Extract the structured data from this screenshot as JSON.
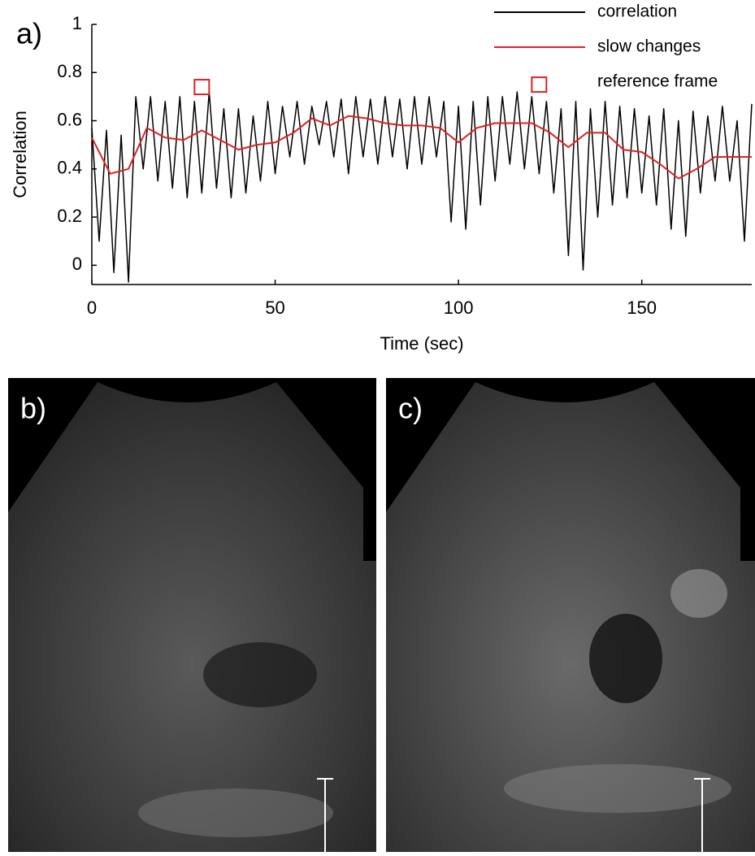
{
  "chart_data": {
    "type": "line",
    "panel_label": "a)",
    "x_label": "Time (sec)",
    "y_label": "Correlation",
    "xlim": [
      0,
      180
    ],
    "ylim": [
      -0.08,
      1
    ],
    "xticks": [
      0,
      50,
      100,
      150
    ],
    "yticks": [
      0,
      0.2,
      0.4,
      0.6,
      0.8,
      1
    ],
    "series": [
      {
        "name": "correlation",
        "color": "#000000",
        "mode": "lines",
        "x": [
          0,
          2,
          4,
          6,
          8,
          10,
          12,
          14,
          16,
          18,
          20,
          22,
          24,
          26,
          28,
          30,
          32,
          34,
          36,
          38,
          40,
          42,
          44,
          46,
          48,
          50,
          52,
          54,
          56,
          58,
          60,
          62,
          64,
          66,
          68,
          70,
          72,
          74,
          76,
          78,
          80,
          82,
          84,
          86,
          88,
          90,
          92,
          94,
          96,
          98,
          100,
          102,
          104,
          106,
          108,
          110,
          112,
          114,
          116,
          118,
          120,
          122,
          124,
          126,
          128,
          130,
          132,
          134,
          136,
          138,
          140,
          142,
          144,
          146,
          148,
          150,
          152,
          154,
          156,
          158,
          160,
          162,
          164,
          166,
          168,
          170,
          172,
          174,
          176,
          178,
          180
        ],
        "values": [
          0.57,
          0.1,
          0.56,
          -0.03,
          0.54,
          -0.07,
          0.7,
          0.4,
          0.7,
          0.35,
          0.68,
          0.32,
          0.7,
          0.28,
          0.68,
          0.3,
          0.72,
          0.32,
          0.65,
          0.28,
          0.65,
          0.3,
          0.62,
          0.35,
          0.68,
          0.38,
          0.66,
          0.45,
          0.68,
          0.42,
          0.66,
          0.5,
          0.68,
          0.45,
          0.69,
          0.38,
          0.7,
          0.45,
          0.69,
          0.42,
          0.7,
          0.45,
          0.69,
          0.4,
          0.7,
          0.42,
          0.7,
          0.45,
          0.68,
          0.18,
          0.66,
          0.15,
          0.68,
          0.25,
          0.7,
          0.35,
          0.7,
          0.42,
          0.72,
          0.4,
          0.7,
          0.38,
          0.68,
          0.3,
          0.65,
          0.04,
          0.68,
          -0.02,
          0.65,
          0.2,
          0.68,
          0.25,
          0.66,
          0.28,
          0.65,
          0.3,
          0.62,
          0.25,
          0.65,
          0.15,
          0.6,
          0.12,
          0.64,
          0.3,
          0.62,
          0.35,
          0.66,
          0.35,
          0.6,
          0.1,
          0.67
        ]
      },
      {
        "name": "slow changes",
        "color": "#dd2222",
        "mode": "lines",
        "x": [
          0,
          5,
          10,
          15,
          20,
          25,
          30,
          35,
          40,
          45,
          50,
          55,
          60,
          65,
          70,
          75,
          80,
          85,
          90,
          95,
          100,
          105,
          110,
          115,
          120,
          125,
          130,
          135,
          140,
          145,
          150,
          155,
          160,
          165,
          170,
          175,
          180
        ],
        "values": [
          0.53,
          0.38,
          0.4,
          0.57,
          0.53,
          0.52,
          0.56,
          0.52,
          0.48,
          0.5,
          0.51,
          0.55,
          0.61,
          0.58,
          0.62,
          0.61,
          0.59,
          0.58,
          0.58,
          0.57,
          0.51,
          0.57,
          0.59,
          0.59,
          0.59,
          0.55,
          0.49,
          0.55,
          0.55,
          0.48,
          0.47,
          0.42,
          0.36,
          0.4,
          0.45,
          0.45,
          0.45
        ]
      },
      {
        "name": "reference frame",
        "color": "#dd2222",
        "mode": "markers",
        "x": [
          30,
          122
        ],
        "values": [
          0.74,
          0.75
        ]
      }
    ]
  },
  "panels": [
    {
      "label": "b)"
    },
    {
      "label": "c)"
    }
  ]
}
